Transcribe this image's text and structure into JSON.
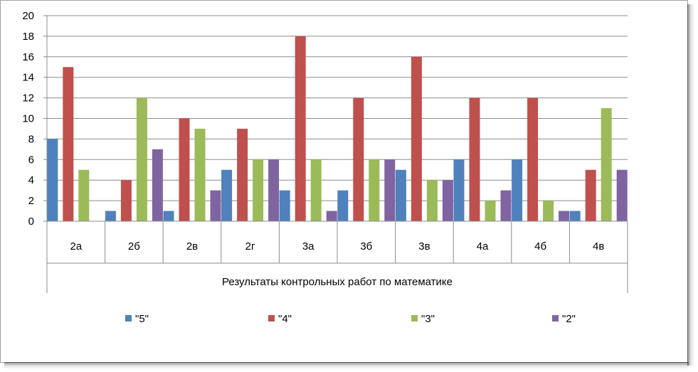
{
  "chart_data": {
    "type": "bar",
    "title": "",
    "xlabel": "Результаты контрольных работ по математике",
    "ylabel": "",
    "ylim": [
      0,
      20
    ],
    "yticks": [
      0,
      2,
      4,
      6,
      8,
      10,
      12,
      14,
      16,
      18,
      20
    ],
    "grid": true,
    "legend_position": "bottom",
    "categories": [
      "2а",
      "2б",
      "2в",
      "2г",
      "3а",
      "3б",
      "3в",
      "4а",
      "4б",
      "4в"
    ],
    "series": [
      {
        "name": "\"5\"",
        "color": "#4F81BD",
        "values": [
          8,
          1,
          1,
          5,
          3,
          3,
          5,
          6,
          6,
          1
        ]
      },
      {
        "name": "\"4\"",
        "color": "#C0504D",
        "values": [
          15,
          4,
          10,
          9,
          18,
          12,
          16,
          12,
          12,
          5
        ]
      },
      {
        "name": "\"3\"",
        "color": "#9BBB59",
        "values": [
          5,
          12,
          9,
          6,
          6,
          6,
          4,
          2,
          2,
          11
        ]
      },
      {
        "name": "\"2\"",
        "color": "#8064A2",
        "values": [
          0,
          7,
          3,
          6,
          1,
          6,
          4,
          3,
          1,
          5
        ]
      }
    ]
  }
}
